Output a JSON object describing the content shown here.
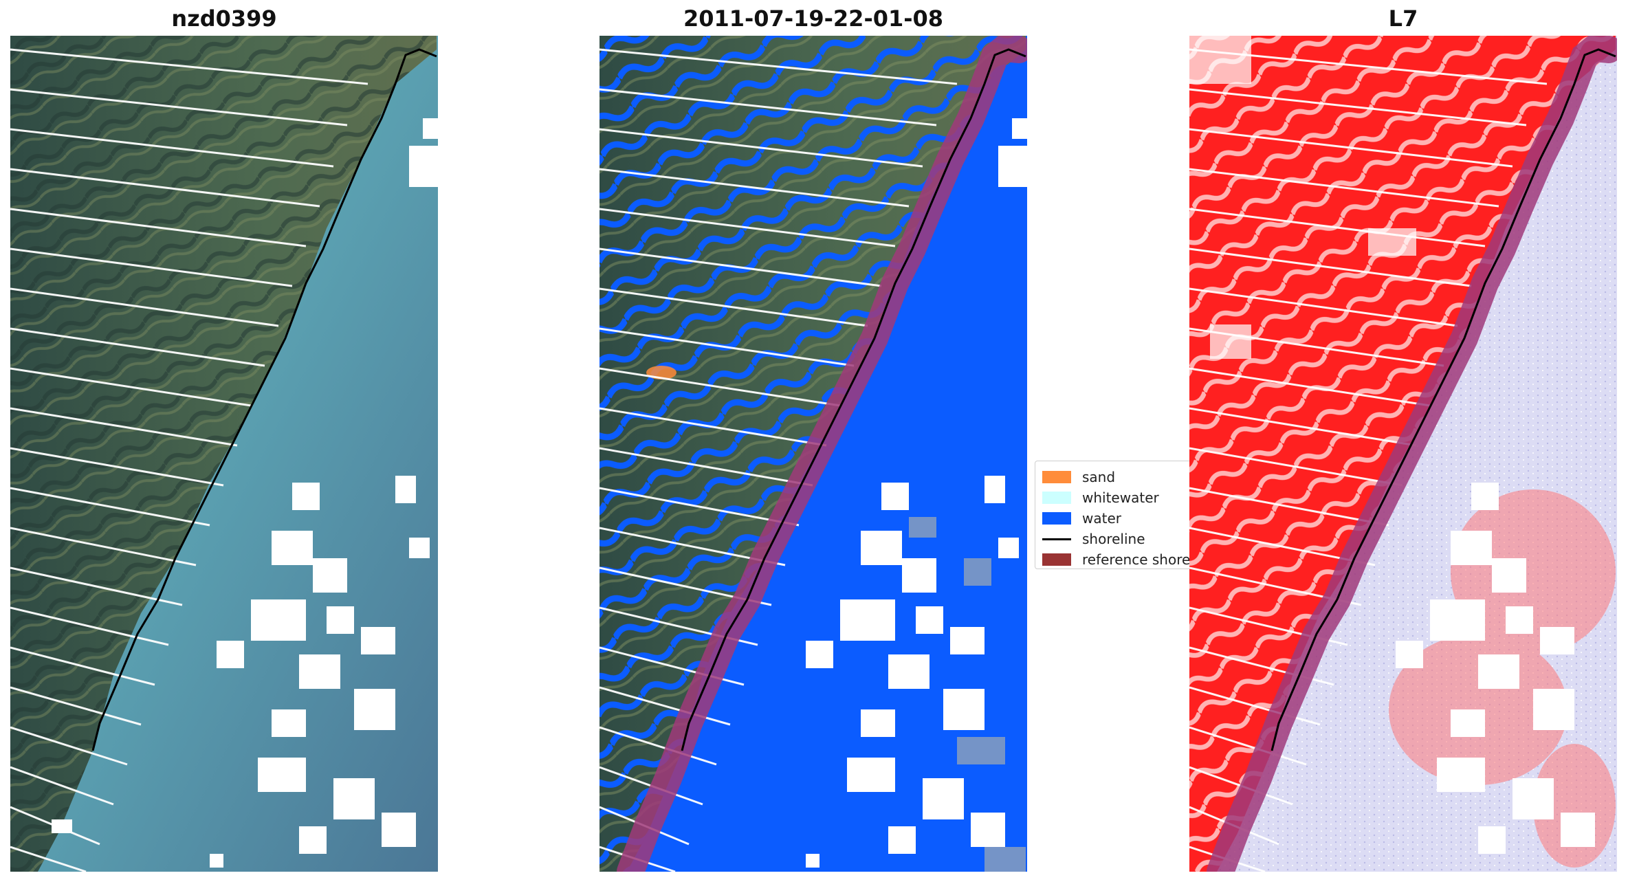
{
  "panels": [
    {
      "title": "nzd0399",
      "icon": "rgb-satellite-image"
    },
    {
      "title": "2011-07-19-22-01-08",
      "icon": "classified-satellite-image"
    },
    {
      "title": "L7",
      "icon": "index-satellite-image"
    }
  ],
  "legend": {
    "items": [
      {
        "label": "sand",
        "color": "#ff8c3a",
        "kind": "patch"
      },
      {
        "label": "whitewater",
        "color": "#ccffff",
        "kind": "patch"
      },
      {
        "label": "water",
        "color": "#0b5cff",
        "kind": "patch"
      },
      {
        "label": "shoreline",
        "color": "#000000",
        "kind": "line"
      },
      {
        "label": "reference shoreline buffer",
        "color": "#993333",
        "kind": "patch"
      }
    ]
  },
  "colors": {
    "land_dark": "#3b5a4c",
    "land_green": "#4f6b4a",
    "sea_turquoise": "#5fa8b0",
    "sea_deep": "#4b7796",
    "water_class": "#0b5cff",
    "buffer": "#a03a7a",
    "index_red": "#ff2020",
    "index_lilac": "#dcdcf4"
  }
}
